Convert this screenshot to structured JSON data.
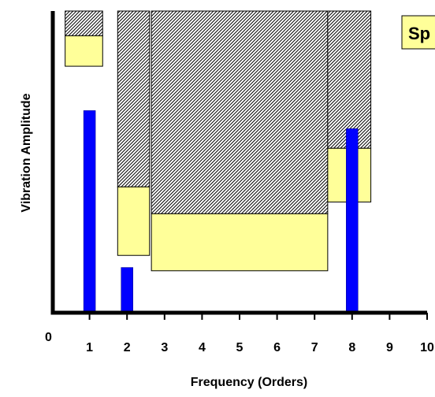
{
  "chart_data": {
    "type": "bar",
    "title": "",
    "xlabel": "Frequency (Orders)",
    "ylabel": "Vibration Amplitude",
    "xlim": [
      0,
      10
    ],
    "ylim": [
      0,
      1
    ],
    "grid": false,
    "origin_label": "0",
    "x_ticks": [
      "1",
      "2",
      "3",
      "4",
      "5",
      "6",
      "7",
      "8",
      "9",
      "10"
    ],
    "callout": {
      "text": "Sp",
      "fill": "#ffff99"
    },
    "bars": [
      {
        "x": 1,
        "y": 0.67,
        "color": "#0000ff"
      },
      {
        "x": 2,
        "y": 0.15,
        "color": "#0000ff"
      },
      {
        "x": 8,
        "y": 0.61,
        "color": "#0000ff"
      }
    ],
    "bands": [
      {
        "x0": 0.35,
        "x1": 1.35,
        "y_top": 1.0,
        "y_limit": 0.918,
        "y_low": 0.817
      },
      {
        "x0": 1.75,
        "x1": 2.6,
        "y_top": 1.0,
        "y_limit": 0.417,
        "y_low": 0.19
      },
      {
        "x0": 2.65,
        "x1": 7.35,
        "y_top": 1.0,
        "y_limit": 0.328,
        "y_low": 0.139
      },
      {
        "x0": 7.35,
        "x1": 8.5,
        "y_top": 1.0,
        "y_limit": 0.545,
        "y_low": 0.367
      }
    ],
    "colors": {
      "alert": "#ffff99",
      "hatch": "#000000",
      "bar": "#0000ff"
    }
  }
}
